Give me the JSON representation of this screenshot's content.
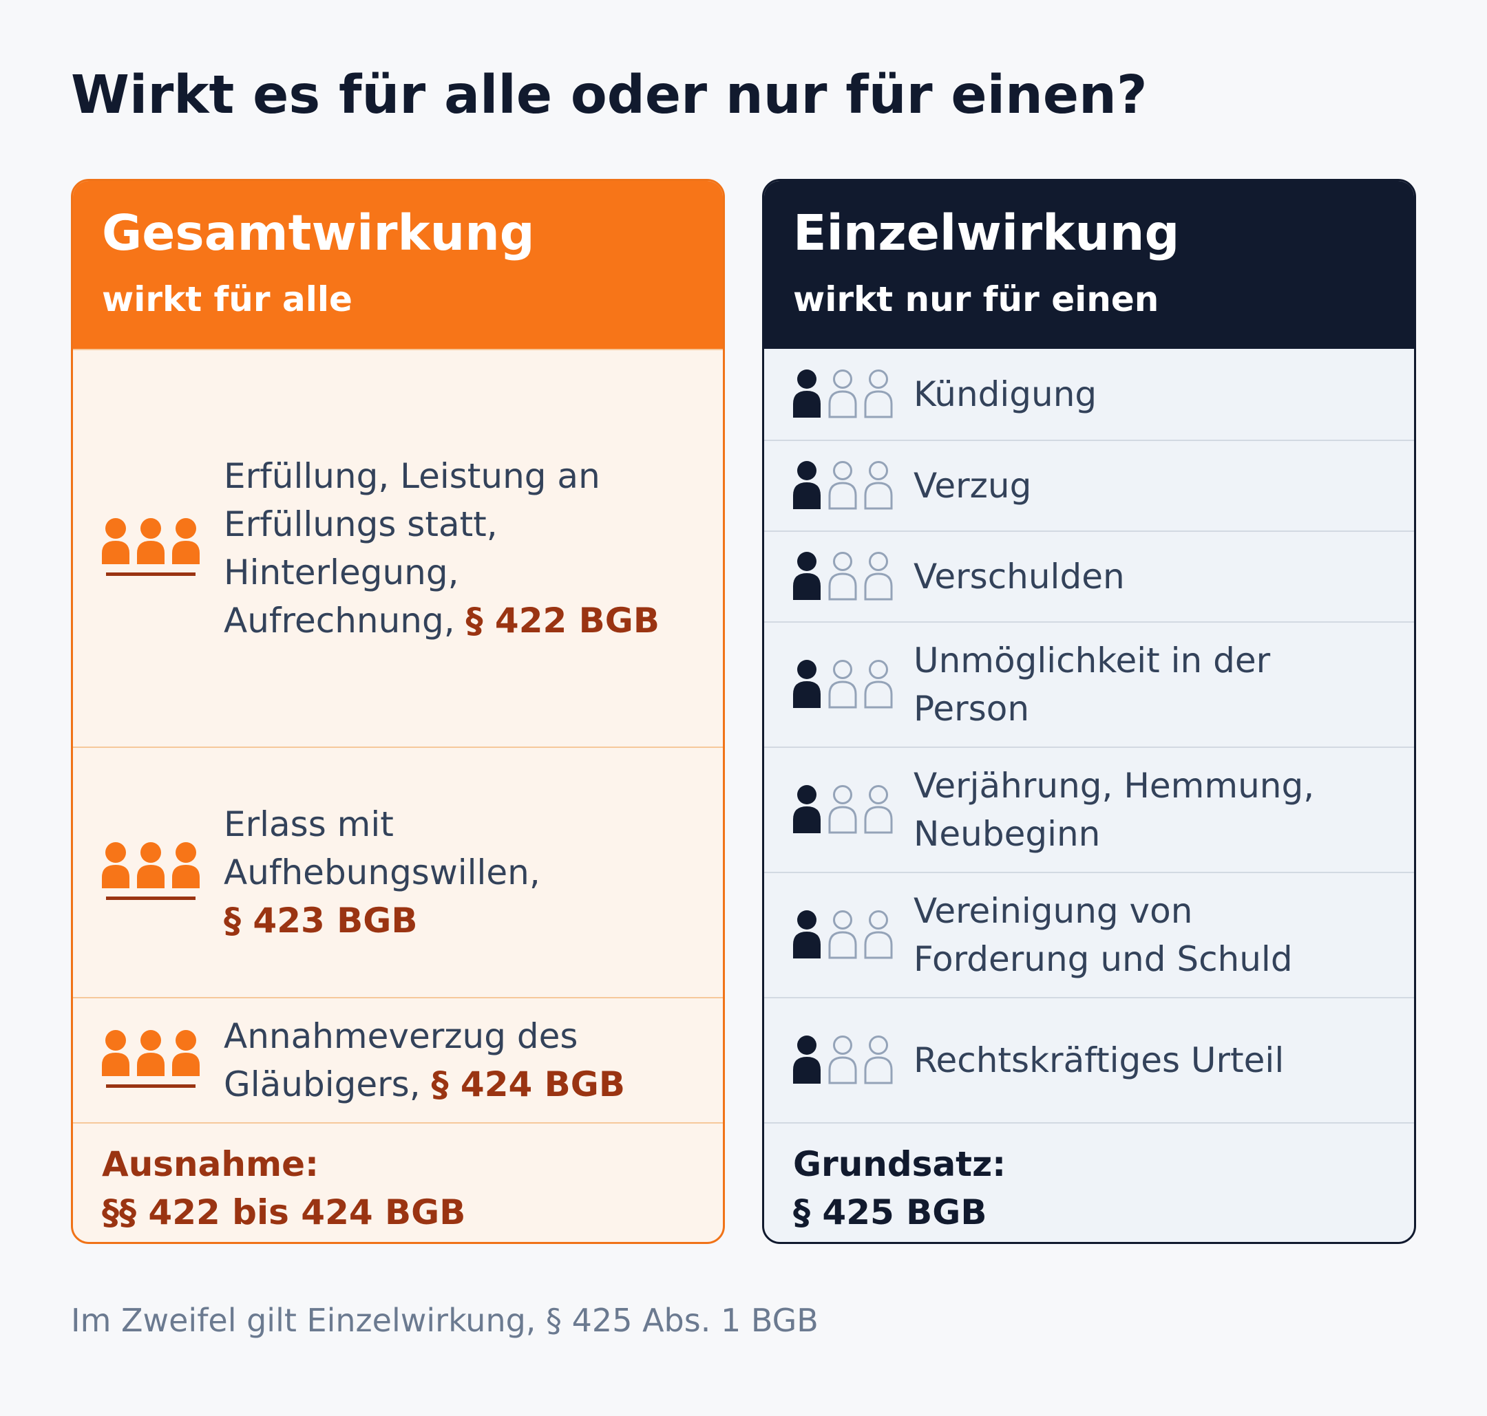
{
  "title": "Wirkt es für alle oder nur für einen?",
  "gesamt": {
    "title": "Gesamtwirkung",
    "subtitle": "wirkt für alle",
    "color": "#f77518",
    "icon": "group-all-icon",
    "items": [
      {
        "lines": [
          "Erfüllung, Leistung an",
          "Erfüllungs statt,",
          "Hinterlegung,",
          "Aufrechnung, "
        ],
        "law": "§ 422 BGB"
      },
      {
        "lines": [
          "Erlass mit",
          "Aufhebungswillen,"
        ],
        "law": "§ 423 BGB"
      },
      {
        "lines": [
          "Annahmeverzug des",
          "Gläubigers, "
        ],
        "law": "§ 424 BGB"
      }
    ],
    "footer": {
      "line1": "Ausnahme:",
      "line2": "§§ 422 bis 424 BGB"
    }
  },
  "einzel": {
    "title": "Einzelwirkung",
    "subtitle": "wirkt nur für einen",
    "color": "#111a2e",
    "icon": "single-person-icon",
    "items": [
      {
        "lines": [
          "Kündigung"
        ]
      },
      {
        "lines": [
          "Verzug"
        ]
      },
      {
        "lines": [
          "Verschulden"
        ]
      },
      {
        "lines": [
          "Unmöglichkeit in der",
          "Person"
        ]
      },
      {
        "lines": [
          "Verjährung, Hemmung,",
          "Neubeginn"
        ]
      },
      {
        "lines": [
          "Vereinigung von",
          "Forderung und Schuld"
        ]
      },
      {
        "lines": [
          "Rechtskräftiges Urteil"
        ]
      }
    ],
    "footer": {
      "line1": "Grundsatz:",
      "line2": "§ 425 BGB"
    }
  },
  "footnote": "Im Zweifel gilt Einzelwirkung, § 425 Abs. 1 BGB"
}
